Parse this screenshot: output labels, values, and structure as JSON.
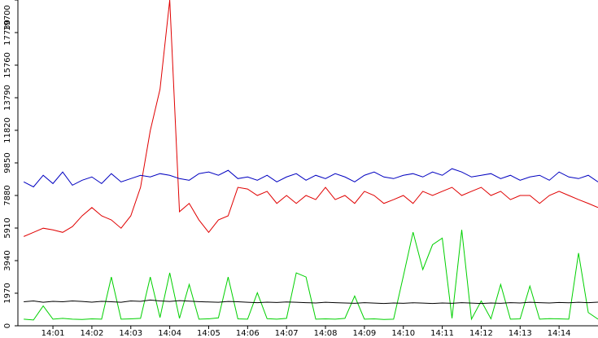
{
  "chart_data": {
    "type": "line",
    "x": [
      0.25,
      0.5,
      0.75,
      1,
      1.25,
      1.5,
      1.75,
      2,
      2.25,
      2.5,
      2.75,
      3,
      3.25,
      3.5,
      3.75,
      4,
      4.25,
      4.5,
      4.75,
      5,
      5.25,
      5.5,
      5.75,
      6,
      6.25,
      6.5,
      6.75,
      7,
      7.25,
      7.5,
      7.75,
      8,
      8.25,
      8.5,
      8.75,
      9,
      9.25,
      9.5,
      9.75,
      10,
      10.25,
      10.5,
      10.75,
      11,
      11.25,
      11.5,
      11.75,
      12,
      12.25,
      12.5,
      12.75,
      13,
      13.25,
      13.5,
      13.75,
      14,
      14.25,
      14.5,
      14.75,
      15
    ],
    "series": [
      {
        "color": "#e00000",
        "values": [
          5400,
          5650,
          5900,
          5800,
          5650,
          6000,
          6650,
          7150,
          6650,
          6400,
          5900,
          6650,
          8370,
          11800,
          14300,
          19700,
          6900,
          7400,
          6400,
          5650,
          6400,
          6650,
          8370,
          8270,
          7880,
          8130,
          7400,
          7880,
          7400,
          7880,
          7630,
          8370,
          7630,
          7880,
          7400,
          8130,
          7880,
          7400,
          7630,
          7880,
          7400,
          8130,
          7880,
          8130,
          8370,
          7880,
          8130,
          8370,
          7880,
          8130,
          7630,
          7880,
          7880,
          7400,
          7880,
          8130,
          7880,
          7630,
          7400,
          7150
        ]
      },
      {
        "color": "#0000c0",
        "values": [
          8700,
          8400,
          9100,
          8600,
          9300,
          8500,
          8800,
          9000,
          8600,
          9200,
          8700,
          8900,
          9100,
          9000,
          9200,
          9100,
          8900,
          8800,
          9200,
          9300,
          9100,
          9400,
          8900,
          9000,
          8800,
          9100,
          8700,
          9000,
          9200,
          8800,
          9100,
          8900,
          9200,
          9000,
          8700,
          9100,
          9300,
          9000,
          8900,
          9100,
          9200,
          9000,
          9300,
          9100,
          9500,
          9300,
          9000,
          9100,
          9200,
          8900,
          9100,
          8800,
          9000,
          9100,
          8800,
          9300,
          9000,
          8900,
          9100,
          8700
        ]
      },
      {
        "color": "#00d000",
        "values": [
          400,
          350,
          1200,
          400,
          450,
          400,
          380,
          420,
          400,
          2950,
          400,
          420,
          450,
          2950,
          500,
          3200,
          450,
          2500,
          400,
          420,
          480,
          2950,
          420,
          400,
          2000,
          430,
          400,
          450,
          3200,
          2950,
          400,
          420,
          400,
          450,
          1800,
          400,
          420,
          380,
          400,
          3000,
          5660,
          3400,
          4900,
          5300,
          450,
          5800,
          400,
          1500,
          420,
          2500,
          400,
          420,
          2400,
          400,
          430,
          420,
          400,
          4400,
          800,
          400
        ]
      },
      {
        "color": "#000000",
        "values": [
          1450,
          1500,
          1420,
          1480,
          1450,
          1500,
          1470,
          1430,
          1480,
          1450,
          1420,
          1500,
          1480,
          1560,
          1500,
          1470,
          1520,
          1490,
          1460,
          1440,
          1420,
          1470,
          1450,
          1420,
          1400,
          1430,
          1410,
          1440,
          1420,
          1400,
          1380,
          1420,
          1400,
          1380,
          1360,
          1400,
          1370,
          1350,
          1380,
          1360,
          1390,
          1370,
          1350,
          1380,
          1360,
          1400,
          1370,
          1350,
          1380,
          1360,
          1400,
          1380,
          1420,
          1400,
          1380,
          1410,
          1390,
          1420,
          1400,
          1430
        ]
      }
    ],
    "xlim": [
      0.1,
      15
    ],
    "xticks": [
      {
        "value": 1,
        "label": "14:01"
      },
      {
        "value": 2,
        "label": "14:02"
      },
      {
        "value": 3,
        "label": "14:03"
      },
      {
        "value": 4,
        "label": "14:04"
      },
      {
        "value": 5,
        "label": "14:05"
      },
      {
        "value": 6,
        "label": "14:06"
      },
      {
        "value": 7,
        "label": "14:07"
      },
      {
        "value": 8,
        "label": "14:08"
      },
      {
        "value": 9,
        "label": "14:09"
      },
      {
        "value": 10,
        "label": "14:10"
      },
      {
        "value": 11,
        "label": "14:11"
      },
      {
        "value": 12,
        "label": "14:12"
      },
      {
        "value": 13,
        "label": "14:13"
      },
      {
        "value": 14,
        "label": "14:14"
      }
    ],
    "ylim": [
      0,
      19700
    ],
    "yticks": [
      0,
      1970,
      3940,
      5910,
      7880,
      9850,
      11820,
      13790,
      15760,
      17730,
      19700
    ]
  }
}
